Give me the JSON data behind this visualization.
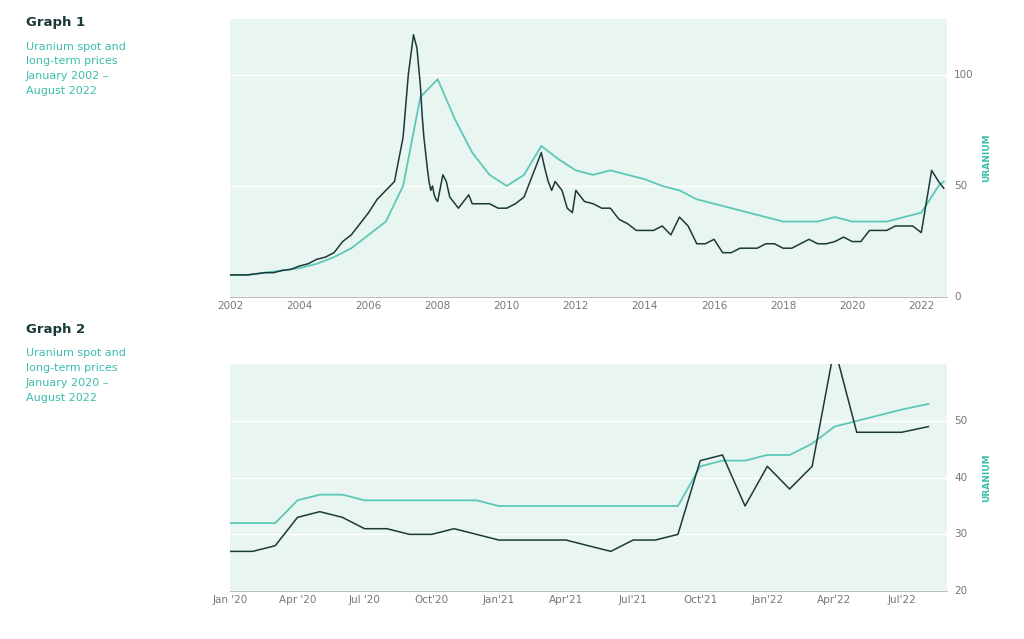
{
  "bg_color": "#e8f5f0",
  "page_bg": "#ffffff",
  "spot_color": "#1a3a3a",
  "longterm_color": "#5ec8b8",
  "graph1_title": "Graph 1",
  "graph1_subtitle": "Uranium spot and\nlong-term prices\nJanuary 2002 –\nAugust 2022",
  "graph2_title": "Graph 2",
  "graph2_subtitle": "Uranium spot and\nlong-term prices\nJanuary 2020 –\nAugust 2022",
  "title_color": "#1a3a3a",
  "subtitle_color": "#3dbdaa",
  "ylabel_text": "URANIUM",
  "ylabel_color": "#3dbdaa",
  "g1_spot_x": [
    2002,
    2002.25,
    2002.5,
    2002.75,
    2003,
    2003.25,
    2003.5,
    2003.75,
    2004,
    2004.25,
    2004.5,
    2004.75,
    2005,
    2005.25,
    2005.5,
    2005.75,
    2006,
    2006.25,
    2006.5,
    2006.75,
    2007,
    2007.15,
    2007.3,
    2007.4,
    2007.5,
    2007.55,
    2007.6,
    2007.65,
    2007.7,
    2007.75,
    2007.8,
    2007.85,
    2007.9,
    2007.95,
    2008,
    2008.15,
    2008.25,
    2008.35,
    2008.5,
    2008.6,
    2008.75,
    2008.9,
    2009,
    2009.25,
    2009.5,
    2009.75,
    2010,
    2010.25,
    2010.5,
    2010.75,
    2011,
    2011.1,
    2011.2,
    2011.3,
    2011.4,
    2011.5,
    2011.6,
    2011.75,
    2011.9,
    2012,
    2012.25,
    2012.5,
    2012.75,
    2013,
    2013.25,
    2013.5,
    2013.75,
    2014,
    2014.25,
    2014.5,
    2014.75,
    2015,
    2015.25,
    2015.5,
    2015.75,
    2016,
    2016.25,
    2016.5,
    2016.75,
    2017,
    2017.25,
    2017.5,
    2017.75,
    2018,
    2018.25,
    2018.5,
    2018.75,
    2019,
    2019.25,
    2019.5,
    2019.75,
    2020,
    2020.25,
    2020.5,
    2020.75,
    2021,
    2021.25,
    2021.5,
    2021.75,
    2022,
    2022.15,
    2022.3,
    2022.5,
    2022.65
  ],
  "g1_spot_y": [
    10,
    10,
    10,
    10.5,
    11,
    11,
    12,
    12.5,
    14,
    15,
    17,
    18,
    20,
    25,
    28,
    33,
    38,
    44,
    48,
    52,
    72,
    100,
    118,
    112,
    95,
    82,
    72,
    65,
    58,
    52,
    48,
    50,
    46,
    44,
    43,
    55,
    52,
    45,
    42,
    40,
    43,
    46,
    42,
    42,
    42,
    40,
    40,
    42,
    45,
    55,
    65,
    58,
    52,
    48,
    52,
    50,
    48,
    40,
    38,
    48,
    43,
    42,
    40,
    40,
    35,
    33,
    30,
    30,
    30,
    32,
    28,
    36,
    32,
    24,
    24,
    26,
    20,
    20,
    22,
    22,
    22,
    24,
    24,
    22,
    22,
    24,
    26,
    24,
    24,
    25,
    27,
    25,
    25,
    30,
    30,
    30,
    32,
    32,
    32,
    29,
    43,
    57,
    52,
    49
  ],
  "g1_lt_x": [
    2002,
    2002.5,
    2003,
    2003.5,
    2004,
    2004.5,
    2005,
    2005.5,
    2006,
    2006.5,
    2007,
    2007.5,
    2008,
    2008.5,
    2009,
    2009.5,
    2010,
    2010.5,
    2011,
    2011.5,
    2012,
    2012.5,
    2013,
    2013.5,
    2014,
    2014.5,
    2015,
    2015.5,
    2016,
    2016.5,
    2017,
    2017.5,
    2018,
    2018.5,
    2019,
    2019.5,
    2020,
    2020.5,
    2021,
    2021.5,
    2022,
    2022.5,
    2022.65
  ],
  "g1_lt_y": [
    10,
    10,
    11,
    12,
    13,
    15,
    18,
    22,
    28,
    34,
    50,
    90,
    98,
    80,
    65,
    55,
    50,
    55,
    68,
    62,
    57,
    55,
    57,
    55,
    53,
    50,
    48,
    44,
    42,
    40,
    38,
    36,
    34,
    34,
    34,
    36,
    34,
    34,
    34,
    36,
    38,
    50,
    52
  ],
  "g2_spot_x": [
    2020.0,
    2020.083,
    2020.167,
    2020.25,
    2020.333,
    2020.417,
    2020.5,
    2020.583,
    2020.667,
    2020.75,
    2020.833,
    2020.917,
    2021.0,
    2021.083,
    2021.167,
    2021.25,
    2021.333,
    2021.417,
    2021.5,
    2021.583,
    2021.667,
    2021.75,
    2021.833,
    2021.917,
    2022.0,
    2022.083,
    2022.167,
    2022.25,
    2022.333,
    2022.417,
    2022.5,
    2022.6
  ],
  "g2_spot_y": [
    27,
    27,
    28,
    33,
    34,
    33,
    31,
    31,
    30,
    30,
    31,
    30,
    29,
    29,
    29,
    29,
    28,
    27,
    29,
    29,
    30,
    43,
    44,
    35,
    42,
    38,
    42,
    63,
    48,
    48,
    48,
    49
  ],
  "g2_lt_x": [
    2020.0,
    2020.083,
    2020.167,
    2020.25,
    2020.333,
    2020.417,
    2020.5,
    2020.583,
    2020.667,
    2020.75,
    2020.833,
    2020.917,
    2021.0,
    2021.083,
    2021.167,
    2021.25,
    2021.333,
    2021.417,
    2021.5,
    2021.583,
    2021.667,
    2021.75,
    2021.833,
    2021.917,
    2022.0,
    2022.083,
    2022.167,
    2022.25,
    2022.333,
    2022.417,
    2022.5,
    2022.6
  ],
  "g2_lt_y": [
    32,
    32,
    32,
    36,
    37,
    37,
    36,
    36,
    36,
    36,
    36,
    36,
    35,
    35,
    35,
    35,
    35,
    35,
    35,
    35,
    35,
    42,
    43,
    43,
    44,
    44,
    46,
    49,
    50,
    51,
    52,
    53
  ],
  "g1_xlim": [
    2002,
    2022.75
  ],
  "g1_ylim": [
    0,
    125
  ],
  "g1_yticks": [
    0,
    50,
    100
  ],
  "g1_xticks": [
    2002,
    2004,
    2006,
    2008,
    2010,
    2012,
    2014,
    2016,
    2018,
    2020,
    2022
  ],
  "g1_xticklabels": [
    "2002",
    "2004",
    "2006",
    "2008",
    "2010",
    "2012",
    "2014",
    "2016",
    "2018",
    "2020",
    "2022"
  ],
  "g2_xlim": [
    2020.0,
    2022.67
  ],
  "g2_ylim": [
    20,
    60
  ],
  "g2_yticks": [
    20,
    30,
    40,
    50
  ],
  "g2_xtick_vals": [
    2020.0,
    2020.25,
    2020.5,
    2020.75,
    2021.0,
    2021.25,
    2021.5,
    2021.75,
    2022.0,
    2022.25,
    2022.5
  ],
  "g2_xticklabels": [
    "Jan '20",
    "Apr '20",
    "Jul '20",
    "Oct'20",
    "Jan'21",
    "Apr'21",
    "Jul'21",
    "Oct'21",
    "Jan'22",
    "Apr'22",
    "Jul'22"
  ]
}
